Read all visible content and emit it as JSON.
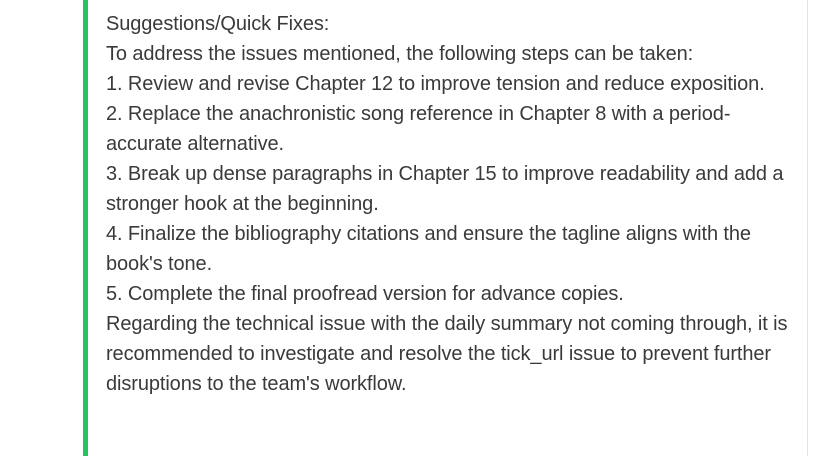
{
  "message": {
    "accent_color": "#22c55e",
    "heading": "Suggestions/Quick Fixes:",
    "intro": "To address the issues mentioned, the following steps can be taken:",
    "steps": [
      "1. Review and revise Chapter 12 to improve tension and reduce exposition.",
      "2. Replace the anachronistic song reference in Chapter 8 with a period-accurate alternative.",
      "3. Break up dense paragraphs in Chapter 15 to improve readability and add a stronger hook at the beginning.",
      "4. Finalize the bibliography citations and ensure the tagline aligns with the book's tone.",
      "5. Complete the final proofread version for advance copies."
    ],
    "closing": "Regarding the technical issue with the daily summary not coming through, it is recommended to investigate and resolve the tick_url issue to prevent further disruptions to the team's workflow."
  }
}
